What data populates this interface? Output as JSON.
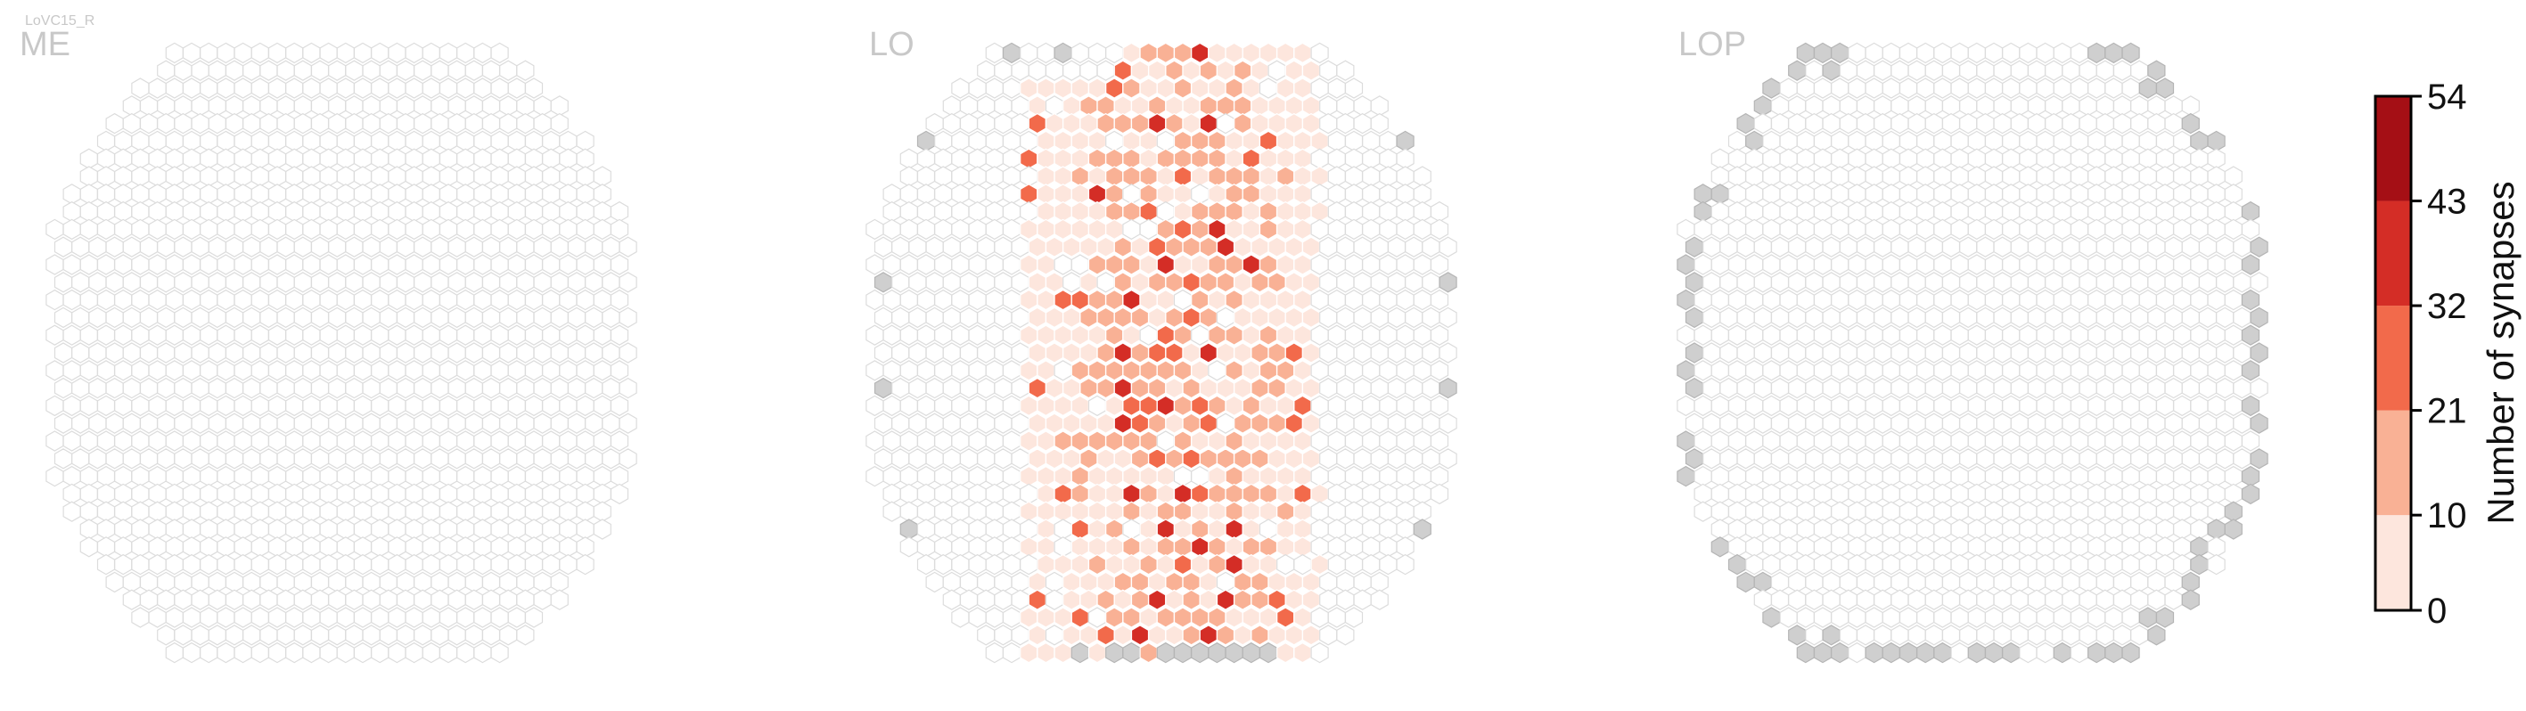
{
  "header": {
    "title": "LoVC15_R"
  },
  "chart_data": {
    "type": "heatmap",
    "panels": [
      {
        "label": "ME",
        "rows": 35,
        "max_cols": 34,
        "data_cells": 0
      },
      {
        "label": "LO",
        "rows": 35,
        "max_cols": 34,
        "data_cells": 330
      },
      {
        "label": "LOP",
        "rows": 35,
        "max_cols": 34,
        "data_cells": 0
      }
    ],
    "colorbar": {
      "label": "Number of synapses",
      "ticks": [
        0,
        10,
        21,
        32,
        43,
        54
      ],
      "bins": [
        {
          "range": [
            0,
            10
          ],
          "color": "#fde6dd"
        },
        {
          "range": [
            10,
            21
          ],
          "color": "#f9b195"
        },
        {
          "range": [
            21,
            32
          ],
          "color": "#f26a4b"
        },
        {
          "range": [
            32,
            43
          ],
          "color": "#d42d26"
        },
        {
          "range": [
            43,
            54
          ],
          "color": "#a50f15"
        }
      ]
    },
    "empty_column_color": "#ffffff",
    "empty_column_stroke": "#dcdcdc",
    "out_of_roi_color": "#cfcfcf"
  }
}
